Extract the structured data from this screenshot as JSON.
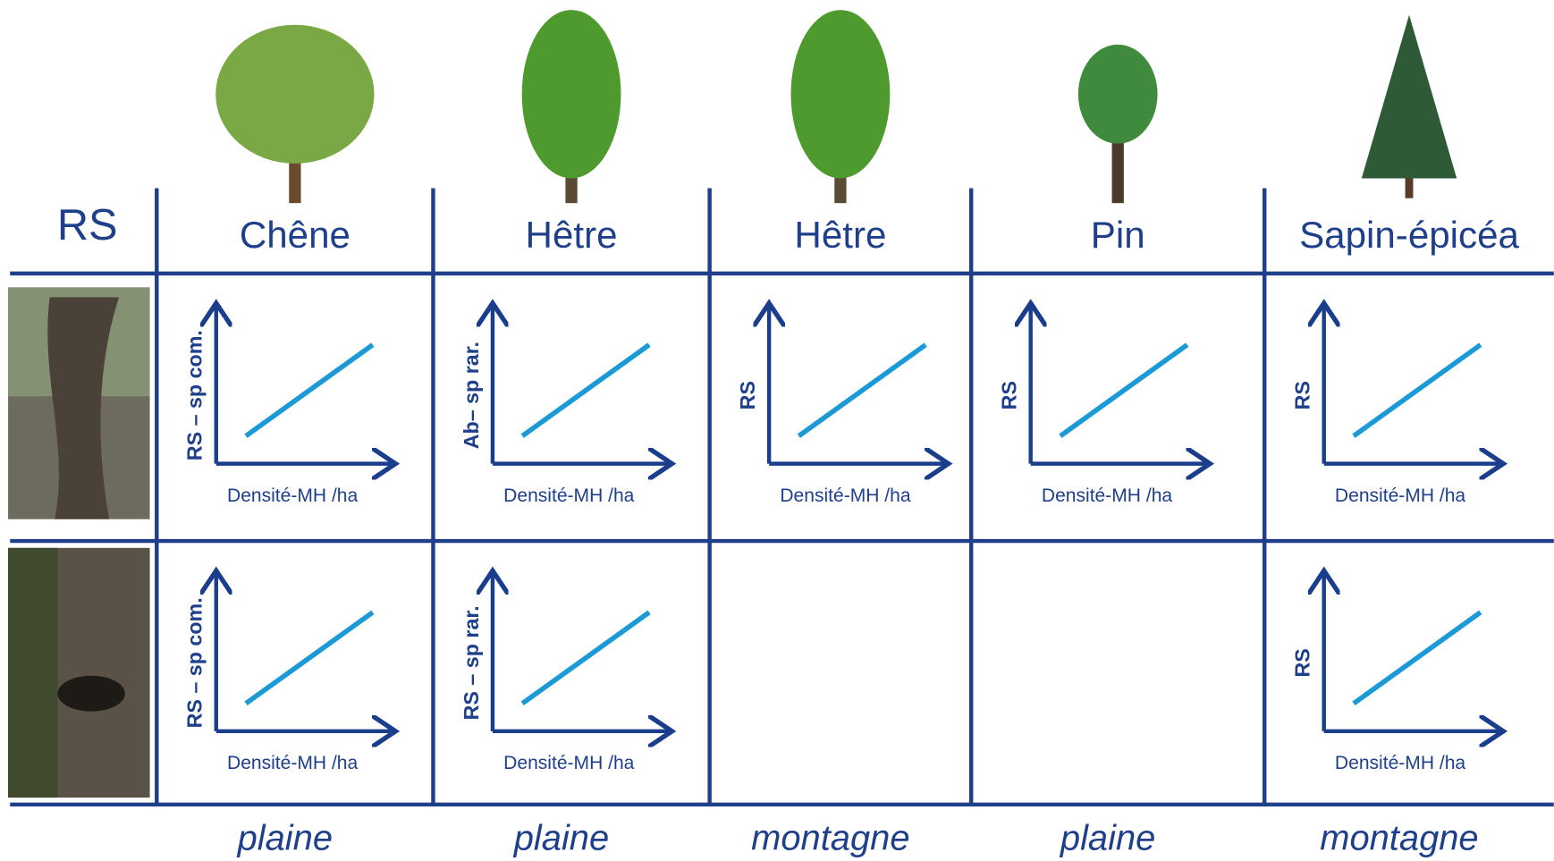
{
  "corner": "RS",
  "columns": [
    "Chêne",
    "Hêtre",
    "Hêtre",
    "Pin",
    "Sapin-épicéa"
  ],
  "rows": [
    {
      "cells": [
        {
          "y_label": "RS – sp com.",
          "x_label": "Densité-MH /ha"
        },
        {
          "y_label": "Ab– sp rar.",
          "x_label": "Densité-MH /ha"
        },
        {
          "y_label": "RS",
          "x_label": "Densité-MH /ha"
        },
        {
          "y_label": "RS",
          "x_label": "Densité-MH /ha"
        },
        {
          "y_label": "RS",
          "x_label": "Densité-MH /ha"
        }
      ]
    },
    {
      "cells": [
        {
          "y_label": "RS – sp com.",
          "x_label": "Densité-MH /ha"
        },
        {
          "y_label": "RS – sp rar.",
          "x_label": "Densité-MH /ha"
        },
        null,
        null,
        {
          "y_label": "RS",
          "x_label": "Densité-MH /ha"
        }
      ]
    }
  ],
  "habitats": [
    "plaine",
    "plaine",
    "montagne",
    "plaine",
    "montagne"
  ]
}
